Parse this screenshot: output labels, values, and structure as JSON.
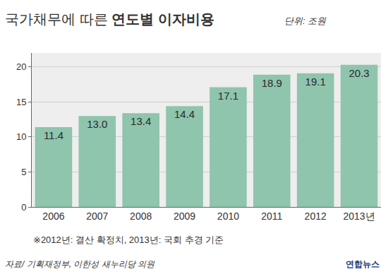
{
  "chart_data": {
    "type": "bar",
    "title": "국가채무에 따른 연도별 이자비용",
    "subtitle": "단위: 조원",
    "categories": [
      "2006",
      "2007",
      "2008",
      "2009",
      "2010",
      "2011",
      "2012",
      "2013년"
    ],
    "values": [
      11.4,
      13,
      13.4,
      14.4,
      17.1,
      18.9,
      19.1,
      20.3
    ],
    "value_labels": [
      "11.4",
      "13.0",
      "13.4",
      "14.4",
      "17.1",
      "18.9",
      "19.1",
      "20.3"
    ],
    "color": "#8fc4ad",
    "ylim": [
      0,
      22
    ],
    "yticks": [
      0,
      5,
      10,
      15,
      20
    ],
    "grid": true,
    "data_labels": true,
    "annotations": [
      "※2012년: 결산 확정치, 2013년: 국회 추경 기준",
      "자료/ 기획재정부, 이한성 새누리당 의원",
      "연합뉴스"
    ]
  }
}
